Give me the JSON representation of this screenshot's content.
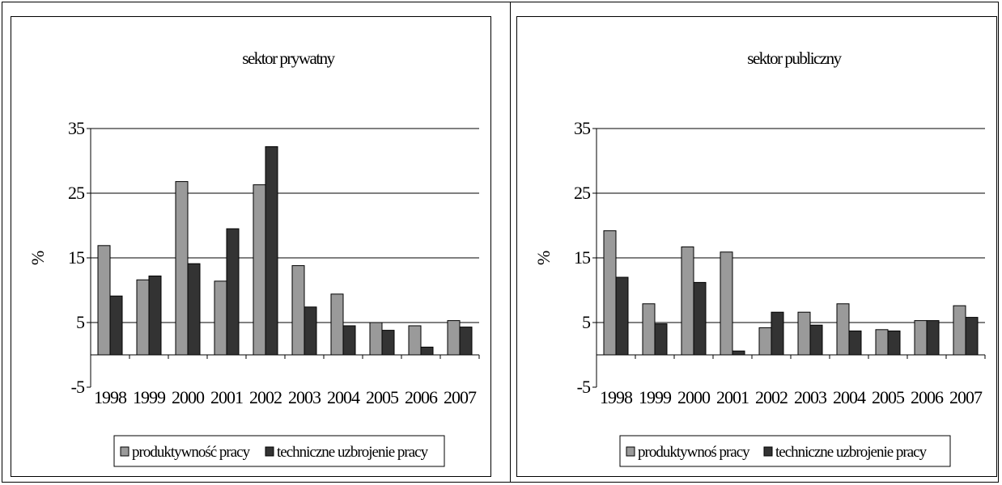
{
  "figure": {
    "colors": {
      "productivity": "#9a9a9a",
      "equipment": "#333333",
      "grid": "#000000",
      "frame": "#000000"
    }
  },
  "chart_data": [
    {
      "type": "bar",
      "title": "sektor prywatny",
      "ylabel": "%",
      "xlabel": "",
      "ylim": [
        -5,
        35
      ],
      "yticks": [
        "35",
        "25",
        "15",
        "5",
        "-5"
      ],
      "grid": true,
      "legend_position": "bottom",
      "categories": [
        "1998",
        "1999",
        "2000",
        "2001",
        "2002",
        "2003",
        "2004",
        "2005",
        "2006",
        "2007"
      ],
      "series": [
        {
          "name": "produktywność pracy",
          "values": [
            16.9,
            11.6,
            26.8,
            11.4,
            26.3,
            13.8,
            9.4,
            5.0,
            4.5,
            5.3
          ]
        },
        {
          "name": "techniczne uzbrojenie pracy",
          "values": [
            9.1,
            12.2,
            14.1,
            19.5,
            32.2,
            7.4,
            4.5,
            3.8,
            1.2,
            4.3
          ]
        }
      ]
    },
    {
      "type": "bar",
      "title": "sektor publiczny",
      "ylabel": "%",
      "xlabel": "",
      "ylim": [
        -5,
        35
      ],
      "yticks": [
        "35",
        "25",
        "15",
        "5",
        "-5"
      ],
      "grid": true,
      "legend_position": "bottom",
      "categories": [
        "1998",
        "1999",
        "2000",
        "2001",
        "2002",
        "2003",
        "2004",
        "2005",
        "2006",
        "2007"
      ],
      "series": [
        {
          "name": "produktywnoś pracy",
          "values": [
            19.2,
            7.9,
            16.7,
            15.9,
            4.2,
            6.6,
            7.9,
            3.9,
            5.3,
            7.6
          ]
        },
        {
          "name": "techniczne uzbrojenie pracy",
          "values": [
            12.0,
            4.8,
            11.2,
            0.6,
            6.6,
            4.6,
            3.7,
            3.7,
            5.3,
            5.8
          ]
        }
      ]
    }
  ]
}
